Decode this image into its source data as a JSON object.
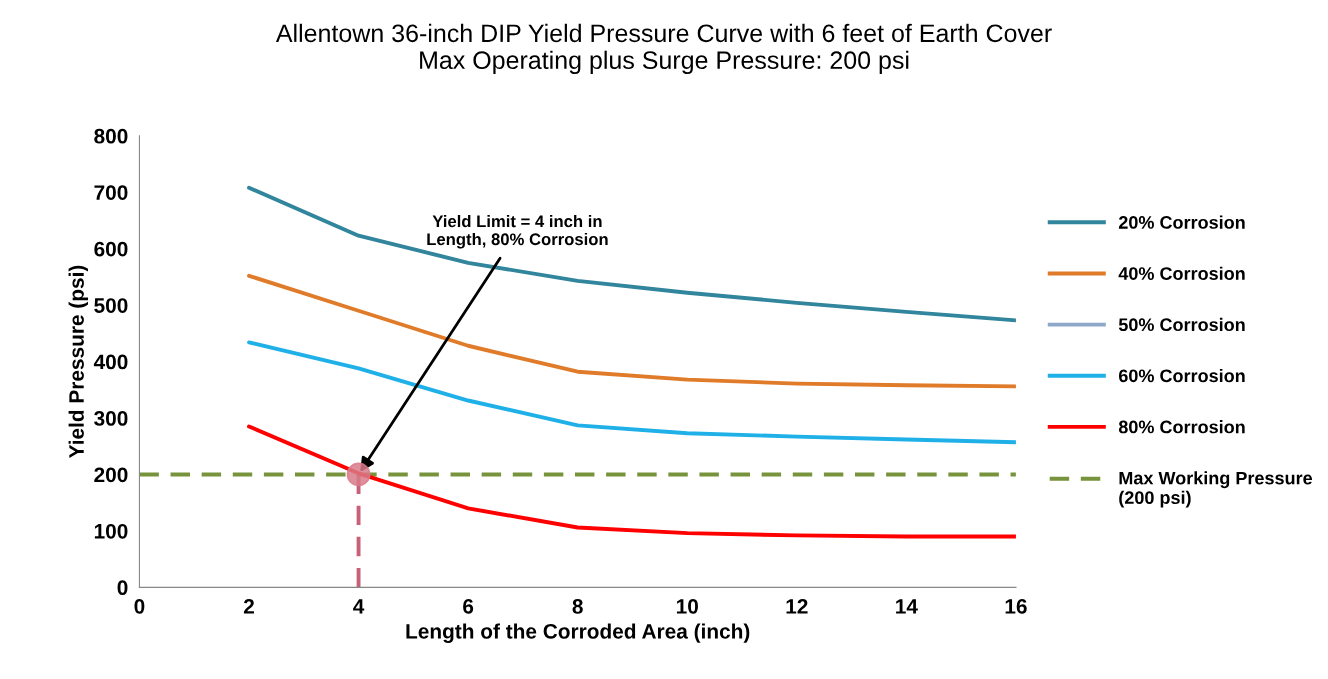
{
  "chart_data": {
    "type": "line",
    "title": "Allentown 36-inch DIP Yield Pressure Curve with 6 feet of Earth Cover\nMax Operating plus Surge Pressure: 200 psi",
    "xlabel": "Length of the Corroded Area (inch)",
    "ylabel": "Yield Pressure (psi)",
    "x": [
      2,
      4,
      6,
      8,
      10,
      12,
      14,
      16
    ],
    "series": [
      {
        "name": "20% Corrosion",
        "color": "#31859c",
        "values": [
          708,
          623,
          575,
          543,
          522,
          504,
          488,
          473
        ]
      },
      {
        "name": "40% Corrosion",
        "color": "#e07b2a",
        "values": [
          552,
          490,
          428,
          382,
          368,
          361,
          358,
          356
        ]
      },
      {
        "name": "50% Corrosion",
        "color": "#8ea9c8",
        "values": [
          null,
          null,
          null,
          null,
          null,
          null,
          null,
          null
        ]
      },
      {
        "name": "60% Corrosion",
        "color": "#1fb0e8",
        "values": [
          434,
          388,
          331,
          287,
          273,
          267,
          262,
          257
        ]
      },
      {
        "name": "80% Corrosion",
        "color": "#ff0000",
        "values": [
          285,
          202,
          140,
          106,
          96,
          92,
          90,
          90
        ]
      },
      {
        "type": "line",
        "color": "#c9607a",
        "x": [
          4,
          4
        ],
        "values": [
          0,
          200
        ],
        "line_style": "dashed"
      },
      {
        "type": "scatter",
        "color": "#d97a8a",
        "x": [
          4
        ],
        "values": [
          200
        ],
        "marker": "circle"
      },
      {
        "type": "line",
        "name": "Max Working Pressure\n(200 psi)",
        "color": "#77933c",
        "x": [
          0,
          16
        ],
        "values": [
          200,
          200
        ],
        "line_style": "dashed"
      }
    ],
    "annotations": [
      {
        "text": "Yield Limit = 4 inch in\nLength, 80% Corrosion",
        "x": 4,
        "y": 200
      }
    ],
    "xlim": [
      0,
      16
    ],
    "xticks": [
      0,
      2,
      4,
      6,
      8,
      10,
      12,
      14,
      16
    ],
    "ylim": [
      0,
      800
    ],
    "yticks": [
      0,
      100,
      200,
      300,
      400,
      500,
      600,
      700,
      800
    ],
    "grid": false,
    "legend": "right",
    "marker": "none",
    "line_style": "solid"
  }
}
